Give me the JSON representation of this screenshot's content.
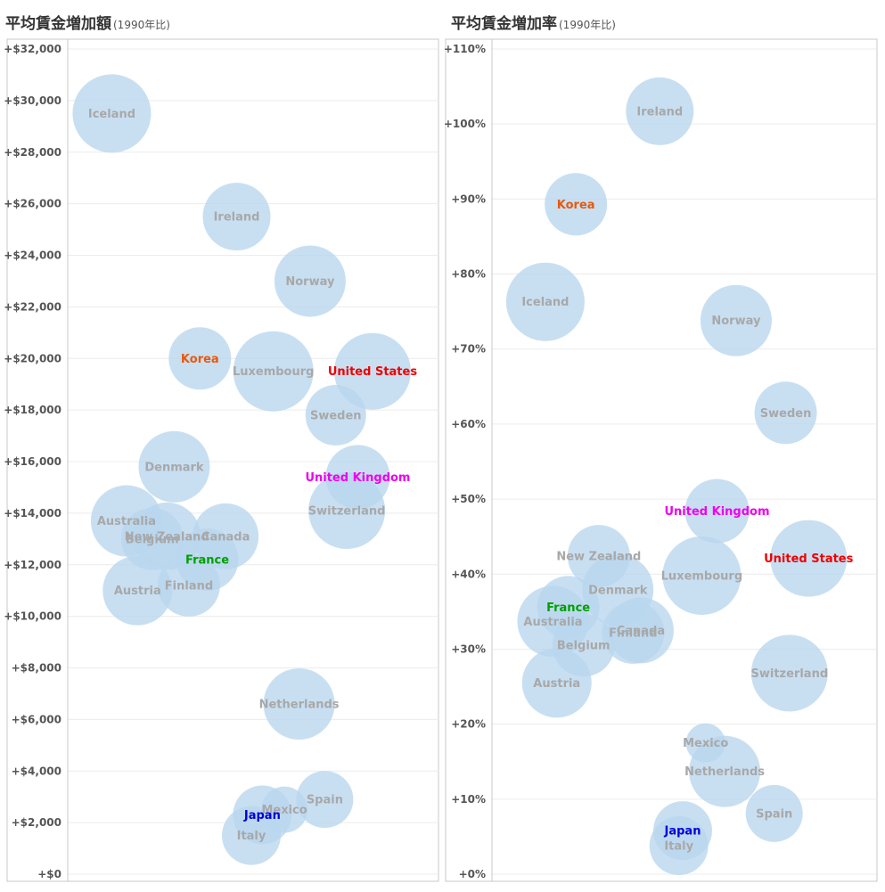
{
  "charts": [
    {
      "title": "平均賃金増加額",
      "subtitle": "(1990年比)"
    },
    {
      "title": "平均賃金増加率",
      "subtitle": "(1990年比)"
    }
  ],
  "chart_data": [
    {
      "type": "scatter",
      "title": "平均賃金増加額",
      "subtitle": "(1990年比)",
      "ylim": [
        0,
        32000
      ],
      "yticks": [
        0,
        2000,
        4000,
        6000,
        8000,
        10000,
        12000,
        14000,
        16000,
        18000,
        20000,
        22000,
        24000,
        26000,
        28000,
        30000,
        32000
      ],
      "ytick_labels": [
        "+$0",
        "+$2,000",
        "+$4,000",
        "+$6,000",
        "+$8,000",
        "+$10,000",
        "+$12,000",
        "+$14,000",
        "+$16,000",
        "+$18,000",
        "+$20,000",
        "+$22,000",
        "+$24,000",
        "+$26,000",
        "+$28,000",
        "+$30,000",
        "+$32,000"
      ],
      "grid": true,
      "points": [
        {
          "label": "Iceland",
          "y": 29500,
          "size": 44,
          "jitter": 0.12,
          "color": "#a8a8a8"
        },
        {
          "label": "Ireland",
          "y": 25500,
          "size": 38,
          "jitter": 0.46,
          "color": "#a8a8a8"
        },
        {
          "label": "Norway",
          "y": 23000,
          "size": 40,
          "jitter": 0.66,
          "color": "#a8a8a8"
        },
        {
          "label": "Korea",
          "y": 20000,
          "size": 35,
          "jitter": 0.36,
          "color": "#e8590c"
        },
        {
          "label": "Luxembourg",
          "y": 19500,
          "size": 45,
          "jitter": 0.56,
          "color": "#a8a8a8"
        },
        {
          "label": "United States",
          "y": 19500,
          "size": 43,
          "jitter": 0.83,
          "color": "#ee0000"
        },
        {
          "label": "Sweden",
          "y": 17800,
          "size": 34,
          "jitter": 0.73,
          "color": "#a8a8a8"
        },
        {
          "label": "Denmark",
          "y": 15800,
          "size": 40,
          "jitter": 0.29,
          "color": "#a8a8a8"
        },
        {
          "label": "United Kingdom",
          "y": 15400,
          "size": 36,
          "jitter": 0.79,
          "color": "#ee00ee"
        },
        {
          "label": "Australia",
          "y": 13700,
          "size": 40,
          "jitter": 0.16,
          "color": "#a8a8a8"
        },
        {
          "label": "Switzerland",
          "y": 14100,
          "size": 43,
          "jitter": 0.76,
          "color": "#a8a8a8"
        },
        {
          "label": "New Zealand",
          "y": 13100,
          "size": 38,
          "jitter": 0.27,
          "color": "#a8a8a8"
        },
        {
          "label": "Belgium",
          "y": 13000,
          "size": 35,
          "jitter": 0.23,
          "color": "#a8a8a8"
        },
        {
          "label": "Canada",
          "y": 13100,
          "size": 37,
          "jitter": 0.43,
          "color": "#a8a8a8"
        },
        {
          "label": "France",
          "y": 12200,
          "size": 35,
          "jitter": 0.38,
          "color": "#00a000"
        },
        {
          "label": "Finland",
          "y": 11200,
          "size": 35,
          "jitter": 0.33,
          "color": "#a8a8a8"
        },
        {
          "label": "Austria",
          "y": 11000,
          "size": 39,
          "jitter": 0.19,
          "color": "#a8a8a8"
        },
        {
          "label": "Netherlands",
          "y": 6600,
          "size": 40,
          "jitter": 0.63,
          "color": "#a8a8a8"
        },
        {
          "label": "Mexico",
          "y": 2500,
          "size": 26,
          "jitter": 0.59,
          "color": "#a8a8a8"
        },
        {
          "label": "Spain",
          "y": 2900,
          "size": 32,
          "jitter": 0.7,
          "color": "#a8a8a8"
        },
        {
          "label": "Japan",
          "y": 2300,
          "size": 33,
          "jitter": 0.53,
          "color": "#0000dd"
        },
        {
          "label": "Italy",
          "y": 1500,
          "size": 33,
          "jitter": 0.5,
          "color": "#a8a8a8"
        }
      ]
    },
    {
      "type": "scatter",
      "title": "平均賃金増加率",
      "subtitle": "(1990年比)",
      "ylim": [
        0,
        110
      ],
      "yticks": [
        0,
        10,
        20,
        30,
        40,
        50,
        60,
        70,
        80,
        90,
        100,
        110
      ],
      "ytick_labels": [
        "+0%",
        "+10%",
        "+20%",
        "+30%",
        "+40%",
        "+50%",
        "+60%",
        "+70%",
        "+80%",
        "+90%",
        "+100%",
        "+110%"
      ],
      "grid": true,
      "points": [
        {
          "label": "Ireland",
          "y": 101.7,
          "size": 38,
          "jitter": 0.44,
          "color": "#a8a8a8"
        },
        {
          "label": "Korea",
          "y": 89.3,
          "size": 35,
          "jitter": 0.22,
          "color": "#e8590c"
        },
        {
          "label": "Iceland",
          "y": 76.3,
          "size": 44,
          "jitter": 0.14,
          "color": "#a8a8a8"
        },
        {
          "label": "Norway",
          "y": 73.8,
          "size": 40,
          "jitter": 0.64,
          "color": "#a8a8a8"
        },
        {
          "label": "Sweden",
          "y": 61.5,
          "size": 35,
          "jitter": 0.77,
          "color": "#a8a8a8"
        },
        {
          "label": "United Kingdom",
          "y": 48.4,
          "size": 36,
          "jitter": 0.59,
          "color": "#ee00ee"
        },
        {
          "label": "New Zealand",
          "y": 42.4,
          "size": 35,
          "jitter": 0.28,
          "color": "#a8a8a8"
        },
        {
          "label": "United States",
          "y": 42.1,
          "size": 43,
          "jitter": 0.83,
          "color": "#ee0000"
        },
        {
          "label": "Luxembourg",
          "y": 39.8,
          "size": 44,
          "jitter": 0.55,
          "color": "#a8a8a8"
        },
        {
          "label": "Denmark",
          "y": 37.9,
          "size": 40,
          "jitter": 0.33,
          "color": "#a8a8a8"
        },
        {
          "label": "France",
          "y": 35.6,
          "size": 35,
          "jitter": 0.2,
          "color": "#00a000"
        },
        {
          "label": "Australia",
          "y": 33.7,
          "size": 40,
          "jitter": 0.16,
          "color": "#a8a8a8"
        },
        {
          "label": "Canada",
          "y": 32.5,
          "size": 37,
          "jitter": 0.39,
          "color": "#a8a8a8"
        },
        {
          "label": "Finland",
          "y": 32.2,
          "size": 35,
          "jitter": 0.37,
          "color": "#a8a8a8"
        },
        {
          "label": "Belgium",
          "y": 30.5,
          "size": 35,
          "jitter": 0.24,
          "color": "#a8a8a8"
        },
        {
          "label": "Switzerland",
          "y": 26.8,
          "size": 43,
          "jitter": 0.78,
          "color": "#a8a8a8"
        },
        {
          "label": "Austria",
          "y": 25.5,
          "size": 39,
          "jitter": 0.17,
          "color": "#a8a8a8"
        },
        {
          "label": "Mexico",
          "y": 17.5,
          "size": 22,
          "jitter": 0.56,
          "color": "#a8a8a8"
        },
        {
          "label": "Netherlands",
          "y": 13.7,
          "size": 40,
          "jitter": 0.61,
          "color": "#a8a8a8"
        },
        {
          "label": "Spain",
          "y": 8.1,
          "size": 32,
          "jitter": 0.74,
          "color": "#a8a8a8"
        },
        {
          "label": "Japan",
          "y": 5.8,
          "size": 33,
          "jitter": 0.5,
          "color": "#0000dd"
        },
        {
          "label": "Italy",
          "y": 3.8,
          "size": 33,
          "jitter": 0.49,
          "color": "#a8a8a8"
        }
      ]
    }
  ],
  "colors": {
    "bubble_fill": "#b8d6ee",
    "grid": "#ececec",
    "axis": "#c8c8c8",
    "tick_text": "#555555"
  }
}
